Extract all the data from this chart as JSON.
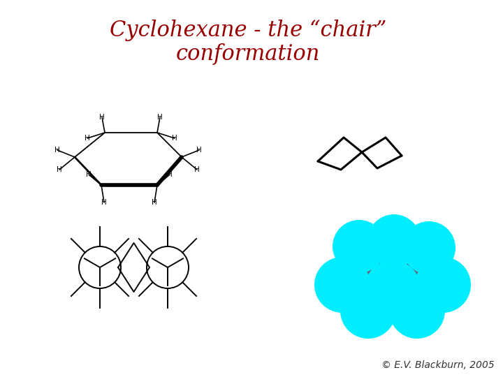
{
  "title_line1": "Cyclohexane - the “chair”",
  "title_line2": "conformation",
  "title_color": "#990000",
  "title_fontsize": 22,
  "bg_color": "#FFFFFF",
  "copyright": "© E.V. Blackburn, 2005",
  "copyright_color": "#333333",
  "copyright_fontsize": 10,
  "cyan_color": "#00EEFF",
  "dark_gray": "#666677",
  "line_color": "#000000",
  "lw_thin": 1.3,
  "lw_mid": 2.0,
  "lw_thick": 4.0
}
